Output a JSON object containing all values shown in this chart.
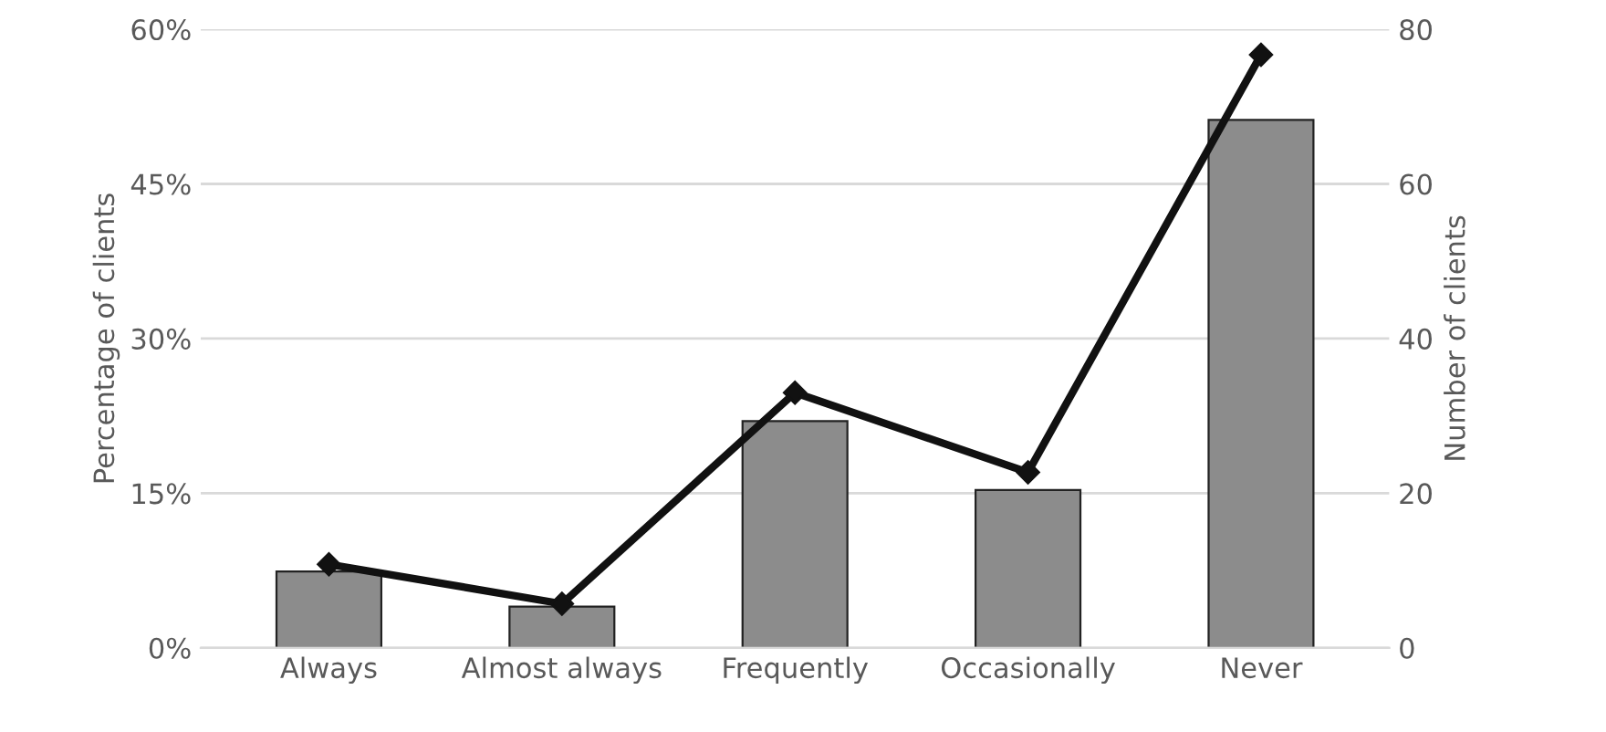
{
  "chart_data": {
    "type": "bar",
    "ylabel": "Percentage of clients",
    "y2label": "Number of clients",
    "categories": [
      "Always",
      "Almost always",
      "Frequently",
      "Occasionally",
      "Never"
    ],
    "series": [
      {
        "color": "#8c8c8c",
        "values": [
          7.4,
          4.0,
          22.0,
          15.3,
          51.2
        ]
      },
      {
        "type": "line",
        "axis": "y2",
        "color": "#111111",
        "marker": "diamond",
        "line_style": "solid",
        "values": [
          10.8,
          5.7,
          33.0,
          22.7,
          76.7
        ]
      }
    ],
    "ylim": [
      0,
      60
    ],
    "yticks": [
      {
        "value": 0,
        "label": "0%"
      },
      {
        "value": 15,
        "label": "15%"
      },
      {
        "value": 30,
        "label": "30%"
      },
      {
        "value": 45,
        "label": "45%"
      },
      {
        "value": 60,
        "label": "60%"
      }
    ],
    "y2lim": [
      0,
      80
    ],
    "y2ticks": [
      0,
      20,
      40,
      60,
      80
    ],
    "grid": "y",
    "legend": false
  }
}
